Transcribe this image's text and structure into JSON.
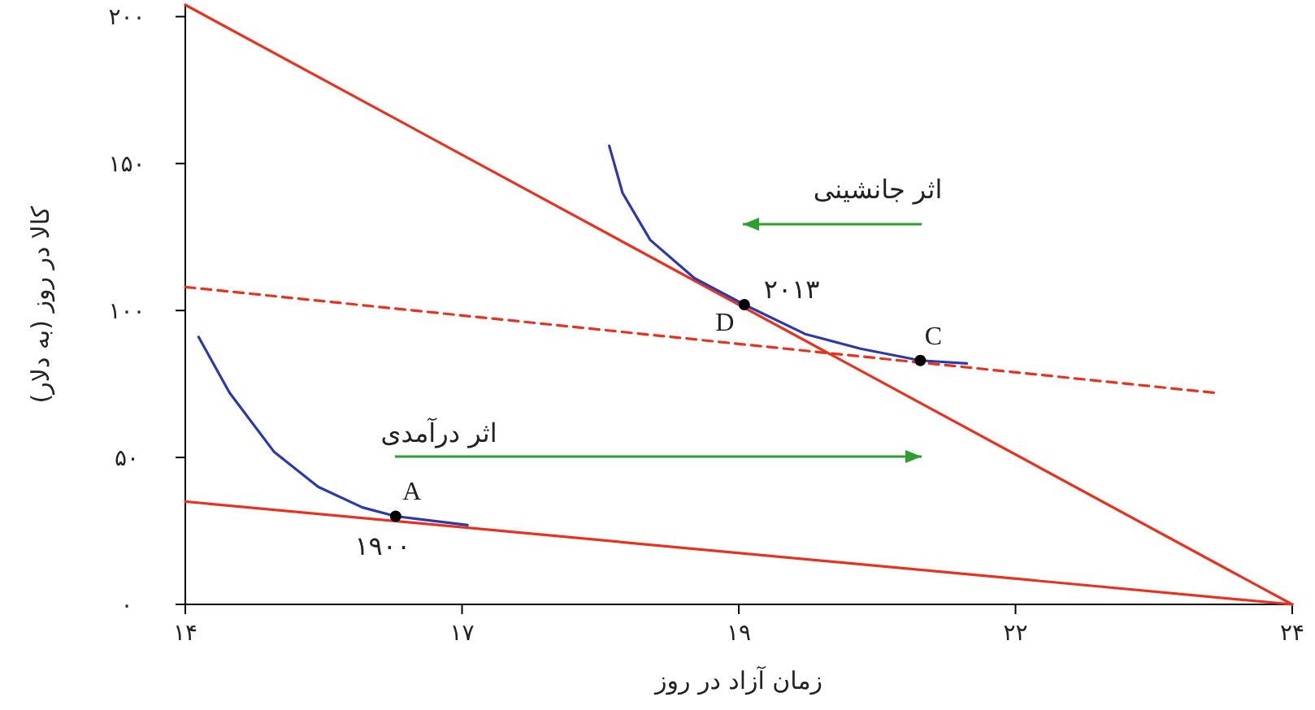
{
  "chart_data": {
    "type": "line",
    "xlabel": "زمان آزاد در روز",
    "ylabel": "کالا در روز (به دلار)",
    "xlim": [
      14,
      24
    ],
    "ylim": [
      0,
      204
    ],
    "xticks": [
      {
        "value": 14,
        "label": "۱۴"
      },
      {
        "value": 16.5,
        "label": "۱۷"
      },
      {
        "value": 19,
        "label": "۱۹"
      },
      {
        "value": 21.5,
        "label": "۲۲"
      },
      {
        "value": 24,
        "label": "۲۴"
      }
    ],
    "yticks": [
      {
        "value": 0,
        "label": "۰"
      },
      {
        "value": 50,
        "label": "۵۰"
      },
      {
        "value": 100,
        "label": "۱۰۰"
      },
      {
        "value": 150,
        "label": "۱۵۰"
      },
      {
        "value": 200,
        "label": "۲۰۰"
      }
    ],
    "grid": false,
    "series": [
      {
        "type": "line",
        "color": "#e8321e",
        "x": [
          14,
          24
        ],
        "values": [
          204,
          0
        ]
      },
      {
        "type": "line",
        "color": "#e8321e",
        "x": [
          14,
          24
        ],
        "values": [
          35,
          0
        ]
      },
      {
        "type": "line",
        "color": "#e8321e",
        "line_style": "dashed",
        "x": [
          14,
          23.3
        ],
        "values": [
          108,
          72
        ]
      },
      {
        "type": "line",
        "color": "#2b3aa8",
        "x": [
          14.12,
          14.4,
          14.8,
          15.2,
          15.6,
          15.9,
          16.55
        ],
        "values": [
          91,
          72,
          52,
          40,
          33,
          30,
          27
        ]
      },
      {
        "type": "line",
        "color": "#2b3aa8",
        "x": [
          17.83,
          17.95,
          18.2,
          18.6,
          19.05,
          19.6,
          20.1,
          20.64,
          21.06
        ],
        "values": [
          156,
          140,
          124,
          111,
          102,
          92,
          87,
          83,
          82
        ]
      },
      {
        "type": "scatter",
        "color": "#000000",
        "x": [
          15.9,
          19.05,
          20.64
        ],
        "values": [
          30,
          102,
          83
        ]
      }
    ],
    "annotations": [
      "اثر جانشینی",
      "اثر درآمدی",
      {
        "text": "A",
        "x": 15.9,
        "y": 30
      },
      {
        "text": "۱۹۰۰",
        "x": 15.9,
        "y": 30
      },
      {
        "text": "D",
        "x": 19.05,
        "y": 102
      },
      {
        "text": "۲۰۱۳",
        "x": 19.05,
        "y": 102
      },
      {
        "text": "C",
        "x": 20.64,
        "y": 83
      }
    ]
  }
}
